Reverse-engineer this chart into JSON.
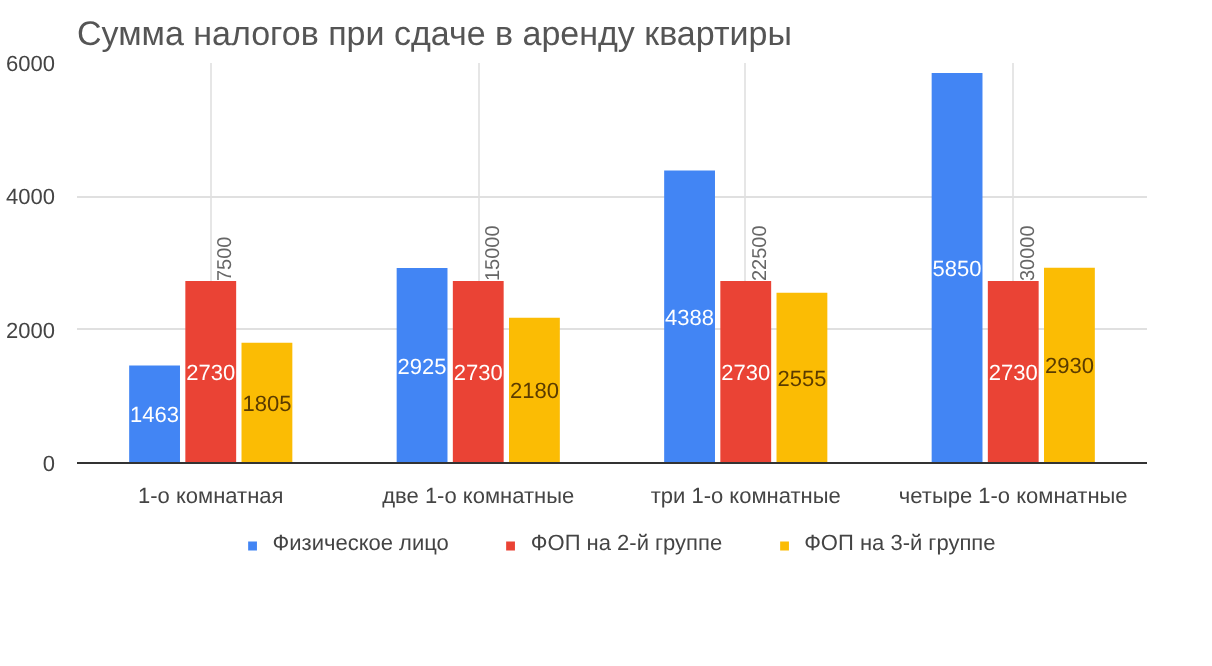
{
  "chart_data": {
    "type": "bar",
    "title": "Сумма налогов при сдаче в аренду квартиры",
    "categories": [
      "1-о комнатная",
      "две 1-о комнатные",
      "три 1-о комнатные",
      "четыре 1-о комнатные"
    ],
    "series": [
      {
        "name": "Физическое лицо",
        "color": "#4285f4",
        "values": [
          1463,
          2925,
          4388,
          5850
        ]
      },
      {
        "name": "ФОП на 2-й группе",
        "color": "#ea4335",
        "values": [
          2730,
          2730,
          2730,
          2730
        ]
      },
      {
        "name": "ФОП на 3-й группе",
        "color": "#fbbc04",
        "values": [
          1805,
          2180,
          2555,
          2930
        ]
      }
    ],
    "ylim": [
      0,
      6000
    ],
    "yticks": [
      0,
      2000,
      4000,
      6000
    ],
    "grid": true,
    "legend": "bottom",
    "data_labels": true,
    "annotations": [
      {
        "text": "7500",
        "x": "1-о комнатная",
        "y": 2730
      },
      {
        "text": "15000",
        "x": "две 1-о комнатные",
        "y": 2730
      },
      {
        "text": "22500",
        "x": "три 1-о комнатные",
        "y": 2730
      },
      {
        "text": "30000",
        "x": "четыре 1-о комнатные",
        "y": 2730
      }
    ]
  }
}
